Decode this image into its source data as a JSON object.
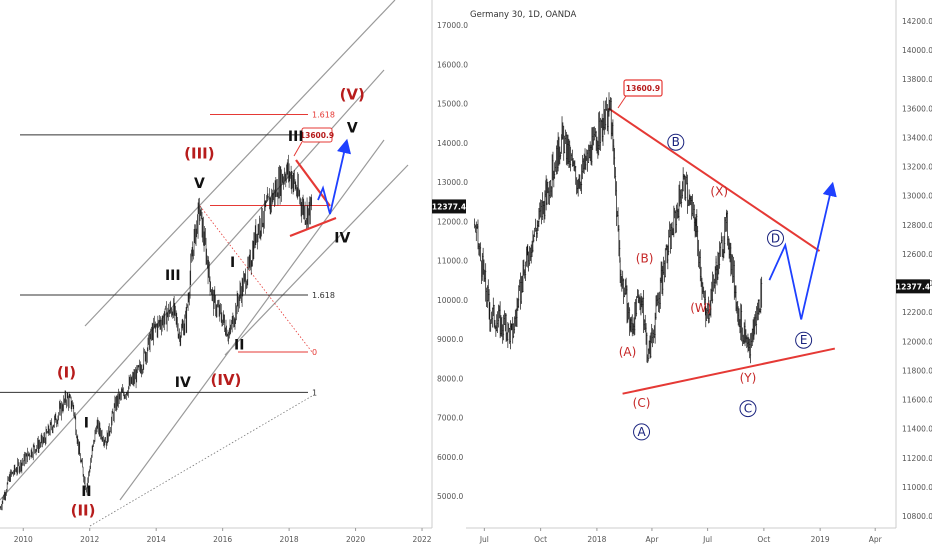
{
  "chart_data": [
    {
      "type": "candlestick",
      "x_ticks": [
        "2010",
        "2012",
        "2014",
        "2016",
        "2018",
        "2020",
        "2022"
      ],
      "y_ticks": [
        "5000.0",
        "6000.0",
        "7000.0",
        "8000.0",
        "9000.0",
        "10000.0",
        "11000.0",
        "12000.0",
        "13000.0",
        "14000.0",
        "15000.0",
        "16000.0",
        "17000.0"
      ],
      "ylim": [
        4400,
        17600
      ],
      "last_price": "12377.4",
      "callout": "13600.9",
      "fib_levels": [
        {
          "label": "1.618",
          "value": 14720,
          "color": "#e53935"
        },
        {
          "label": "1.618",
          "value": 10120,
          "color": "#333333"
        },
        {
          "label": "1",
          "value": 7640,
          "color": "#333333"
        },
        {
          "label": "0",
          "value": 8670,
          "color": "#e53935"
        }
      ],
      "wave_labels": [
        {
          "text": "(I)",
          "x": 2011.3,
          "y": 8020,
          "style": "red"
        },
        {
          "text": "(II)",
          "x": 2011.8,
          "y": 4500,
          "style": "red"
        },
        {
          "text": "(III)",
          "x": 2015.3,
          "y": 13600,
          "style": "red"
        },
        {
          "text": "(IV)",
          "x": 2016.1,
          "y": 7830,
          "style": "red"
        },
        {
          "text": "(V)",
          "x": 2019.9,
          "y": 15100,
          "style": "red"
        },
        {
          "text": "I",
          "x": 2011.9,
          "y": 6750,
          "style": "black"
        },
        {
          "text": "II",
          "x": 2011.9,
          "y": 5000,
          "style": "black"
        },
        {
          "text": "III",
          "x": 2014.5,
          "y": 10500,
          "style": "black"
        },
        {
          "text": "IV",
          "x": 2014.8,
          "y": 7780,
          "style": "black"
        },
        {
          "text": "V",
          "x": 2015.3,
          "y": 12850,
          "style": "black"
        },
        {
          "text": "I",
          "x": 2016.3,
          "y": 10830,
          "style": "black"
        },
        {
          "text": "II",
          "x": 2016.5,
          "y": 8730,
          "style": "black"
        },
        {
          "text": "III",
          "x": 2018.2,
          "y": 14050,
          "style": "black"
        },
        {
          "text": "IV",
          "x": 2019.6,
          "y": 11460,
          "style": "black"
        },
        {
          "text": "V",
          "x": 2019.9,
          "y": 14260,
          "style": "black"
        }
      ],
      "series": [
        {
          "x": [
            2009.3,
            2009.6,
            2010.0,
            2010.3,
            2010.6,
            2011.0,
            2011.3,
            2011.5,
            2011.7,
            2011.9,
            2012.2,
            2012.5,
            2012.8,
            2013.1,
            2013.5,
            2013.9,
            2014.2,
            2014.5,
            2014.7,
            2014.9,
            2015.1,
            2015.3,
            2015.5,
            2015.7,
            2016.0,
            2016.2,
            2016.5,
            2016.8,
            2017.0,
            2017.3,
            2017.6,
            2017.9,
            2018.1,
            2018.3,
            2018.5,
            2018.7
          ],
          "y": [
            4700,
            5500,
            5900,
            6200,
            6400,
            7000,
            7500,
            7300,
            6000,
            5200,
            6800,
            6400,
            7400,
            7700,
            8200,
            9200,
            9500,
            9800,
            9100,
            9500,
            11300,
            12300,
            11200,
            10000,
            9500,
            9100,
            10100,
            10800,
            11700,
            12300,
            12800,
            13300,
            13100,
            12600,
            12200,
            12377
          ]
        }
      ]
    },
    {
      "type": "candlestick",
      "title": "Germany 30, 1D, OANDA",
      "x_ticks": [
        "Jul",
        "Oct",
        "2018",
        "Apr",
        "Jul",
        "Oct",
        "2019",
        "Apr"
      ],
      "y_ticks": [
        "10800.0",
        "11000.0",
        "11200.0",
        "11400.0",
        "11600.0",
        "11800.0",
        "12000.0",
        "12200.0",
        "12400.0",
        "12600.0",
        "12800.0",
        "13000.0",
        "13200.0",
        "13400.0",
        "13600.0",
        "13800.0",
        "14000.0",
        "14200.0"
      ],
      "ylim": [
        10740,
        14300
      ],
      "last_price": "12377.4",
      "callout": "13600.9",
      "wave_labels": [
        {
          "text": "(A)",
          "x": "2018-02-20",
          "y": 11900,
          "style": "red"
        },
        {
          "text": "(B)",
          "x": "2018-03-20",
          "y": 12540,
          "style": "red"
        },
        {
          "text": "(C)",
          "x": "2018-03-15",
          "y": 11550,
          "style": "red"
        },
        {
          "text": "(W)",
          "x": "2018-06-20",
          "y": 12200,
          "style": "red"
        },
        {
          "text": "(X)",
          "x": "2018-07-20",
          "y": 13000,
          "style": "red"
        },
        {
          "text": "(Y)",
          "x": "2018-09-05",
          "y": 11720,
          "style": "red"
        },
        {
          "text": "A",
          "x": "2018-03-15",
          "y": 11350,
          "style": "blue"
        },
        {
          "text": "B",
          "x": "2018-05-10",
          "y": 13340,
          "style": "blue"
        },
        {
          "text": "C",
          "x": "2018-09-05",
          "y": 11510,
          "style": "blue"
        },
        {
          "text": "D",
          "x": "2018-10-20",
          "y": 12680,
          "style": "blue"
        },
        {
          "text": "E",
          "x": "2018-12-05",
          "y": 11980,
          "style": "blue"
        }
      ],
      "series": [
        {
          "x": [
            "2017-06-15",
            "2017-07-10",
            "2017-08-15",
            "2017-09-10",
            "2017-10-10",
            "2017-11-05",
            "2017-11-30",
            "2018-01-23",
            "2018-02-08",
            "2018-02-25",
            "2018-03-14",
            "2018-03-26",
            "2018-04-20",
            "2018-05-22",
            "2018-06-12",
            "2018-06-28",
            "2018-07-15",
            "2018-08-01",
            "2018-08-20",
            "2018-09-05",
            "2018-09-28"
          ],
          "y": [
            12800,
            12200,
            12050,
            12600,
            13000,
            13400,
            13100,
            13600,
            12500,
            12100,
            12300,
            11900,
            12500,
            13100,
            12800,
            12150,
            12500,
            12800,
            12200,
            11900,
            12377
          ]
        }
      ],
      "projection": [
        {
          "x": "2018-10-10",
          "y": 12420
        },
        {
          "x": "2018-11-05",
          "y": 12660
        },
        {
          "x": "2018-12-01",
          "y": 12150
        },
        {
          "x": "2019-01-20",
          "y": 13060
        }
      ]
    }
  ]
}
